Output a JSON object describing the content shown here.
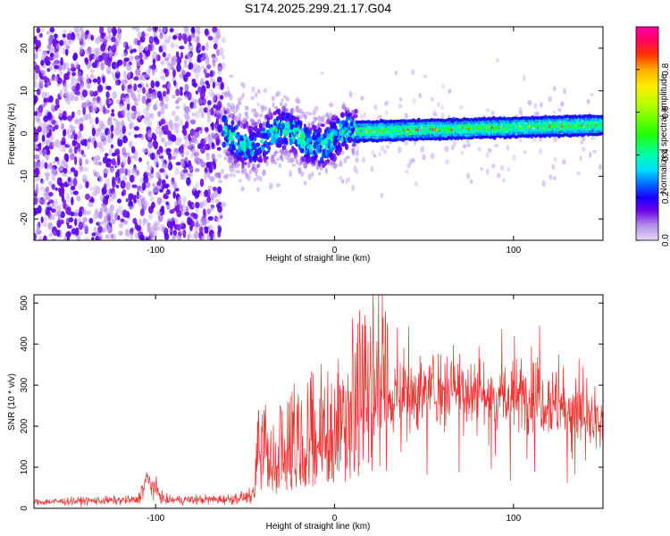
{
  "title": "S174.2025.299.21.17.G04",
  "chart_data": [
    {
      "type": "heatmap",
      "name": "spectrogram",
      "xlabel": "Height of straight line (km)",
      "ylabel": "Frequency (Hz)",
      "xlim": [
        -168,
        150
      ],
      "ylim": [
        -25,
        25
      ],
      "xticks": [
        -100,
        0,
        100
      ],
      "xtick_labels": [
        "-100",
        "0",
        "100"
      ],
      "yticks": [
        -20,
        -10,
        0,
        10,
        20
      ],
      "ytick_labels": [
        "-20",
        "-10",
        "0",
        "10",
        "20"
      ],
      "colorbar": {
        "label": "Normalized spectral amplitude",
        "range": [
          0,
          1
        ],
        "ticks": [
          0.0,
          0.2,
          0.4,
          0.6,
          0.8
        ],
        "tick_labels": [
          "0.0",
          "0.2",
          "0.4",
          "0.6",
          "0.8"
        ]
      },
      "features": {
        "noise_region_x": [
          -168,
          -62
        ],
        "transition_region_x": [
          -62,
          12
        ],
        "signal_line_x": [
          12,
          150
        ],
        "signal_line_frequency_hz": [
          0.5,
          2.0
        ]
      }
    },
    {
      "type": "line",
      "name": "snr",
      "xlabel": "Height of straight line (km)",
      "ylabel": "SNR (10 * v/v)",
      "xlim": [
        -168,
        150
      ],
      "ylim": [
        0,
        520
      ],
      "xticks": [
        -100,
        0,
        100
      ],
      "xtick_labels": [
        "-100",
        "0",
        "100"
      ],
      "yticks": [
        0,
        100,
        200,
        300,
        400,
        500
      ],
      "ytick_labels": [
        "0",
        "100",
        "200",
        "300",
        "400",
        "500"
      ],
      "color": "#ee3333",
      "series": [
        {
          "name": "SNR",
          "x": [
            -168,
            -140,
            -110,
            -105,
            -100,
            -95,
            -60,
            -45,
            -42,
            -35,
            -25,
            -15,
            -5,
            0,
            10,
            20,
            30,
            40,
            50,
            60,
            70,
            80,
            90,
            100,
            110,
            120,
            130,
            140,
            150
          ],
          "y": [
            15,
            18,
            20,
            70,
            45,
            20,
            22,
            30,
            140,
            100,
            140,
            160,
            170,
            185,
            220,
            245,
            265,
            275,
            285,
            295,
            300,
            280,
            270,
            265,
            280,
            265,
            240,
            220,
            190
          ]
        }
      ]
    }
  ]
}
